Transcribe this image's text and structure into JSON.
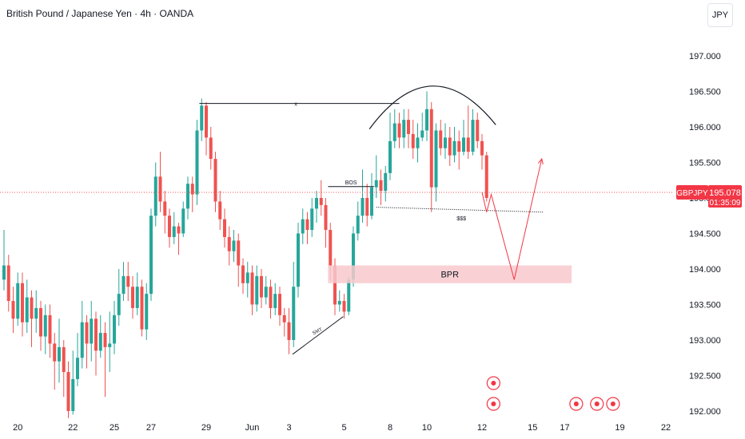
{
  "header": {
    "symbol_title": "British Pound / Japanese Yen · 4h · OANDA",
    "currency_button": "JPY"
  },
  "price_tag": {
    "symbol": "GBPJPY",
    "price": "195.078",
    "countdown": "01:35:09",
    "value": 195.078
  },
  "colors": {
    "up": "#26a69a",
    "down": "#ef5350",
    "projection": "#f23645",
    "bpr_fill": "#f8c9cd",
    "line": "#131722"
  },
  "chart_data": {
    "type": "candlestick",
    "title": "British Pound / Japanese Yen · 4h · OANDA",
    "ylim": [
      191.95,
      197.45
    ],
    "y_ticks": [
      197.0,
      196.5,
      196.0,
      195.5,
      195.0,
      194.5,
      194.0,
      193.5,
      193.0,
      192.5,
      192.0
    ],
    "y_tick_labels": [
      "197.000",
      "196.500",
      "196.000",
      "195.500",
      "195.000",
      "194.500",
      "194.000",
      "193.500",
      "193.000",
      "192.500",
      "192.000"
    ],
    "x_ticks": [
      {
        "label": "20",
        "i": 3
      },
      {
        "label": "22",
        "i": 15
      },
      {
        "label": "25",
        "i": 24
      },
      {
        "label": "27",
        "i": 32
      },
      {
        "label": "29",
        "i": 44
      },
      {
        "label": "Jun",
        "i": 54
      },
      {
        "label": "3",
        "i": 62
      },
      {
        "label": "5",
        "i": 74
      },
      {
        "label": "8",
        "i": 84
      },
      {
        "label": "10",
        "i": 92
      },
      {
        "label": "12",
        "i": 104
      },
      {
        "label": "15",
        "i": 115
      },
      {
        "label": "17",
        "i": 122
      },
      {
        "label": "19",
        "i": 134
      },
      {
        "label": "22",
        "i": 144
      }
    ],
    "candles": [
      [
        193.85,
        194.05,
        194.55,
        193.7
      ],
      [
        194.05,
        193.55,
        194.2,
        193.4
      ],
      [
        193.55,
        193.3,
        193.75,
        193.1
      ],
      [
        193.3,
        193.8,
        193.95,
        193.2
      ],
      [
        193.8,
        193.25,
        193.95,
        193.05
      ],
      [
        193.25,
        193.6,
        193.85,
        193.1
      ],
      [
        193.6,
        193.3,
        193.7,
        192.9
      ],
      [
        193.3,
        193.45,
        193.7,
        193.1
      ],
      [
        193.45,
        193.05,
        193.55,
        192.85
      ],
      [
        193.05,
        193.35,
        193.5,
        192.8
      ],
      [
        193.35,
        192.95,
        193.5,
        192.75
      ],
      [
        192.95,
        192.7,
        193.1,
        192.3
      ],
      [
        192.7,
        192.9,
        193.3,
        192.4
      ],
      [
        192.9,
        192.55,
        193.0,
        192.2
      ],
      [
        192.55,
        192.0,
        192.7,
        191.9
      ],
      [
        192.0,
        192.45,
        192.85,
        191.95
      ],
      [
        192.45,
        192.75,
        193.1,
        192.35
      ],
      [
        192.75,
        193.25,
        193.55,
        192.6
      ],
      [
        193.25,
        192.95,
        193.35,
        192.6
      ],
      [
        192.95,
        193.3,
        193.55,
        192.7
      ],
      [
        193.3,
        192.85,
        193.4,
        192.5
      ],
      [
        192.85,
        193.1,
        193.35,
        192.75
      ],
      [
        193.1,
        192.9,
        193.25,
        192.2
      ],
      [
        192.9,
        192.95,
        193.4,
        192.55
      ],
      [
        192.95,
        193.35,
        193.55,
        192.8
      ],
      [
        193.35,
        193.65,
        194.0,
        193.2
      ],
      [
        193.65,
        193.9,
        194.1,
        193.55
      ],
      [
        193.9,
        193.75,
        194.1,
        193.55
      ],
      [
        193.75,
        193.45,
        193.9,
        193.3
      ],
      [
        193.45,
        193.75,
        193.95,
        193.35
      ],
      [
        193.75,
        193.15,
        193.85,
        193.05
      ],
      [
        193.15,
        193.65,
        193.8,
        193.0
      ],
      [
        193.65,
        194.75,
        194.85,
        193.55
      ],
      [
        194.75,
        195.3,
        195.5,
        194.6
      ],
      [
        195.3,
        194.95,
        195.65,
        194.8
      ],
      [
        194.95,
        194.75,
        195.1,
        194.5
      ],
      [
        194.75,
        194.45,
        194.85,
        194.3
      ],
      [
        194.45,
        194.6,
        194.8,
        194.35
      ],
      [
        194.6,
        194.5,
        194.65,
        194.2
      ],
      [
        194.5,
        194.85,
        194.95,
        194.45
      ],
      [
        194.85,
        195.2,
        195.3,
        194.7
      ],
      [
        195.2,
        195.05,
        195.3,
        194.8
      ],
      [
        195.05,
        195.95,
        196.1,
        194.9
      ],
      [
        195.95,
        196.3,
        196.4,
        195.8
      ],
      [
        196.3,
        195.85,
        196.35,
        195.6
      ],
      [
        195.85,
        195.55,
        196.0,
        195.4
      ],
      [
        195.55,
        194.95,
        195.65,
        194.8
      ],
      [
        194.95,
        194.7,
        195.1,
        194.55
      ],
      [
        194.7,
        194.45,
        194.85,
        194.3
      ],
      [
        194.45,
        194.25,
        194.6,
        194.05
      ],
      [
        194.25,
        194.4,
        194.55,
        194.1
      ],
      [
        194.4,
        194.05,
        194.5,
        193.75
      ],
      [
        194.05,
        193.8,
        194.15,
        193.65
      ],
      [
        193.8,
        193.95,
        194.1,
        193.6
      ],
      [
        193.95,
        193.5,
        194.05,
        193.35
      ],
      [
        193.5,
        193.9,
        194.05,
        193.4
      ],
      [
        193.9,
        193.6,
        194.0,
        193.45
      ],
      [
        193.6,
        193.75,
        193.9,
        193.5
      ],
      [
        193.75,
        193.45,
        193.85,
        193.3
      ],
      [
        193.45,
        193.65,
        193.8,
        193.35
      ],
      [
        193.65,
        193.35,
        193.75,
        193.2
      ],
      [
        193.35,
        193.25,
        193.45,
        193.05
      ],
      [
        193.25,
        193.0,
        193.45,
        192.8
      ],
      [
        193.0,
        193.75,
        194.1,
        192.9
      ],
      [
        193.75,
        194.5,
        194.65,
        193.6
      ],
      [
        194.5,
        194.7,
        194.85,
        194.35
      ],
      [
        194.7,
        194.55,
        194.8,
        194.35
      ],
      [
        194.55,
        194.85,
        195.0,
        194.45
      ],
      [
        194.85,
        195.0,
        195.1,
        194.65
      ],
      [
        195.0,
        194.9,
        195.25,
        194.75
      ],
      [
        194.9,
        194.55,
        195.0,
        194.3
      ],
      [
        194.55,
        194.05,
        194.65,
        193.85
      ],
      [
        194.05,
        193.5,
        194.15,
        193.35
      ],
      [
        193.5,
        193.55,
        193.7,
        193.4
      ],
      [
        193.55,
        193.4,
        193.65,
        193.3
      ],
      [
        193.4,
        193.85,
        193.9,
        193.35
      ],
      [
        193.85,
        194.5,
        194.6,
        193.75
      ],
      [
        194.5,
        194.75,
        194.95,
        194.4
      ],
      [
        194.75,
        195.0,
        195.4,
        194.65
      ],
      [
        195.0,
        194.75,
        195.2,
        194.6
      ],
      [
        194.75,
        195.15,
        195.35,
        194.7
      ],
      [
        195.15,
        195.25,
        195.6,
        195.0
      ],
      [
        195.25,
        195.1,
        195.4,
        194.9
      ],
      [
        195.1,
        195.35,
        195.45,
        194.95
      ],
      [
        195.35,
        195.8,
        196.2,
        195.25
      ],
      [
        195.8,
        196.05,
        196.25,
        195.7
      ],
      [
        196.05,
        195.85,
        196.2,
        195.7
      ],
      [
        195.85,
        196.1,
        196.25,
        195.7
      ],
      [
        196.1,
        195.9,
        196.25,
        195.7
      ],
      [
        195.9,
        195.7,
        196.1,
        195.55
      ],
      [
        195.7,
        195.85,
        196.05,
        195.5
      ],
      [
        195.85,
        195.95,
        196.2,
        195.8
      ],
      [
        195.95,
        196.25,
        196.5,
        195.8
      ],
      [
        196.25,
        195.15,
        196.35,
        194.8
      ],
      [
        195.15,
        195.95,
        196.05,
        194.95
      ],
      [
        195.95,
        195.7,
        196.1,
        195.6
      ],
      [
        195.7,
        195.85,
        196.05,
        195.55
      ],
      [
        195.85,
        195.6,
        196.0,
        195.45
      ],
      [
        195.6,
        195.8,
        196.0,
        195.5
      ],
      [
        195.8,
        195.65,
        195.95,
        195.4
      ],
      [
        195.65,
        195.85,
        196.1,
        195.6
      ],
      [
        195.85,
        195.65,
        196.3,
        195.55
      ],
      [
        195.65,
        196.1,
        196.25,
        195.6
      ],
      [
        196.1,
        195.8,
        196.2,
        195.7
      ],
      [
        195.8,
        195.6,
        195.9,
        195.4
      ],
      [
        195.6,
        195.0,
        195.65,
        194.95
      ]
    ],
    "annotations": {
      "x_label": "x",
      "bos_label": "BOS",
      "sss_label": "$$$",
      "smt_label": "SMT",
      "bpr_label": "BPR",
      "bpr_range": [
        193.8,
        194.05
      ],
      "projection_path": [
        [
          104,
          195.08
        ],
        [
          105,
          194.8
        ],
        [
          106,
          195.05
        ],
        [
          111,
          193.85
        ],
        [
          117,
          195.55
        ]
      ]
    }
  }
}
